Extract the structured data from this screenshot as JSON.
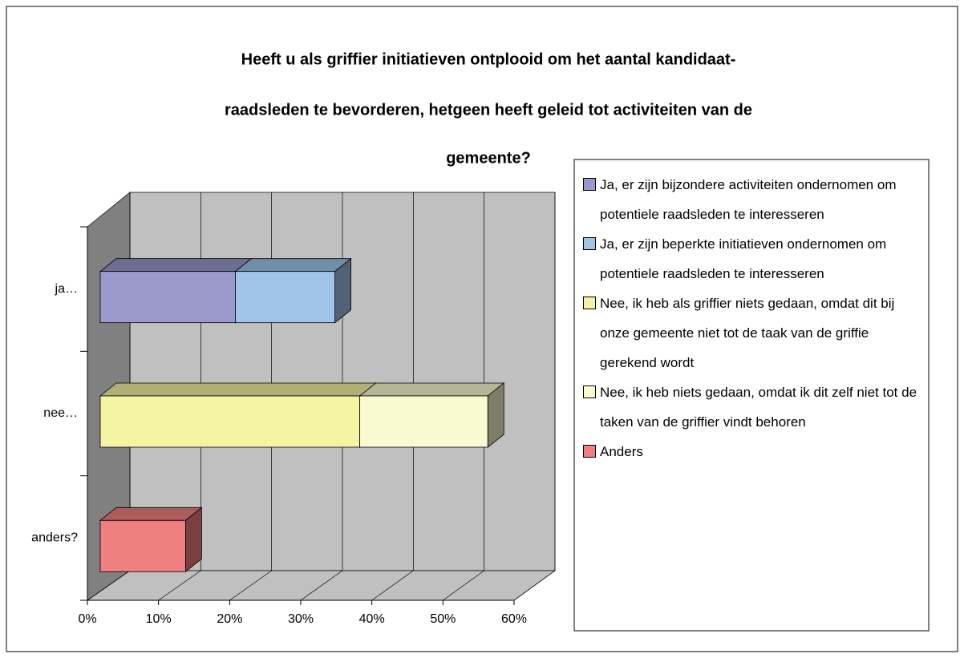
{
  "chart_data": {
    "type": "bar3d_stacked_horizontal",
    "title": [
      "Heeft u als griffier initiatieven ontplooid om het aantal kandidaat-",
      "raadsleden te bevorderen, hetgeen heeft geleid tot activiteiten van de",
      "gemeente?"
    ],
    "categories": [
      "ja…",
      "nee…",
      "anders?"
    ],
    "series": [
      {
        "name": "Ja, er zijn bijzondere activiteiten ondernomen om potentiele raadsleden te interesseren",
        "color": "#9999cc",
        "values": [
          19,
          null,
          null
        ]
      },
      {
        "name": "Ja, er zijn beperkte initiatieven ondernomen om potentiele raadsleden te interesseren",
        "color": "#9fc4e8",
        "values": [
          14,
          null,
          null
        ]
      },
      {
        "name": "Nee, ik heb als griffier niets gedaan, omdat dit bij onze gemeente niet tot de taak van de griffie gerekend wordt",
        "color": "#f4f4a4",
        "values": [
          null,
          36.5,
          null
        ]
      },
      {
        "name": "Nee, ik heb niets gedaan, omdat ik dit zelf niet tot de taken van de griffier vindt behoren",
        "color": "#fafad0",
        "values": [
          null,
          18,
          null
        ]
      },
      {
        "name": "Anders",
        "color": "#f08080",
        "values": [
          null,
          null,
          12
        ]
      }
    ],
    "xlim": [
      0,
      60
    ],
    "xticks": [
      {
        "value": 0,
        "label": "0%"
      },
      {
        "value": 10,
        "label": "10%"
      },
      {
        "value": 20,
        "label": "20%"
      },
      {
        "value": 30,
        "label": "30%"
      },
      {
        "value": 40,
        "label": "40%"
      },
      {
        "value": 50,
        "label": "50%"
      },
      {
        "value": 60,
        "label": "60%"
      }
    ],
    "grid": true
  }
}
